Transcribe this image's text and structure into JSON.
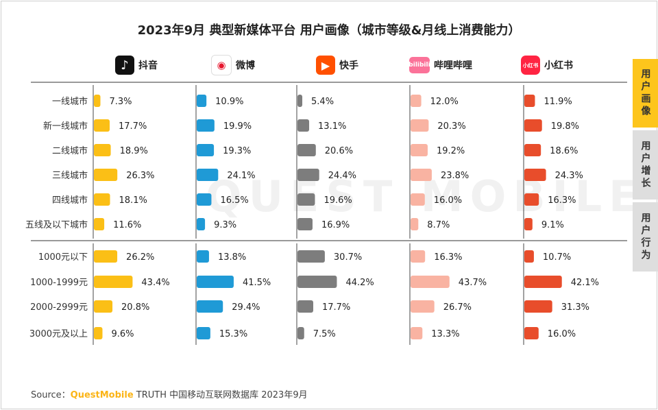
{
  "title": "2023年9月 典型新媒体平台 用户画像（城市等级&月线上消费能力）",
  "platforms": [
    {
      "name": "抖音",
      "logo_icon": "douyin-logo-icon",
      "logo_glyph": "♪"
    },
    {
      "name": "微博",
      "logo_icon": "weibo-logo-icon",
      "logo_glyph": "◉"
    },
    {
      "name": "快手",
      "logo_icon": "kuaishou-logo-icon",
      "logo_glyph": "▶"
    },
    {
      "name": "哔哩哔哩",
      "logo_icon": "bilibili-logo-icon",
      "logo_glyph": "bilibili"
    },
    {
      "name": "小红书",
      "logo_icon": "xiaohongshu-logo-icon",
      "logo_glyph": "小红书"
    }
  ],
  "side_tabs": [
    {
      "label": "用户画像",
      "active": true
    },
    {
      "label": "用户增长",
      "active": false
    },
    {
      "label": "用户行为",
      "active": false
    }
  ],
  "watermark": "QUEST MOBILE",
  "source": {
    "prefix": "Source：",
    "brand": "QuestMobile",
    "rest": " TRUTH 中国移动互联网数据库 2023年9月"
  },
  "colors": {
    "抖音": "#fbbf16",
    "微博": "#1f9ad6",
    "快手": "#7d7d7d",
    "哔哩哔哩": "#f9b3a2",
    "小红书": "#e84d2b"
  },
  "chart_data": [
    {
      "type": "bar",
      "group": "城市等级",
      "categories": [
        "一线城市",
        "新一线城市",
        "二线城市",
        "三线城市",
        "四线城市",
        "五线及以下城市"
      ],
      "unit": "%",
      "series": [
        {
          "name": "抖音",
          "values": [
            7.3,
            17.7,
            18.9,
            26.3,
            18.1,
            11.6
          ]
        },
        {
          "name": "微博",
          "values": [
            10.9,
            19.9,
            19.3,
            24.1,
            16.5,
            9.3
          ]
        },
        {
          "name": "快手",
          "values": [
            5.4,
            13.1,
            20.6,
            24.4,
            19.6,
            16.9
          ]
        },
        {
          "name": "哔哩哔哩",
          "values": [
            12.0,
            20.3,
            19.2,
            23.8,
            16.0,
            8.7
          ]
        },
        {
          "name": "小红书",
          "values": [
            11.9,
            19.8,
            18.6,
            24.3,
            16.3,
            9.1
          ]
        }
      ]
    },
    {
      "type": "bar",
      "group": "月线上消费能力",
      "categories": [
        "1000元以下",
        "1000-1999元",
        "2000-2999元",
        "3000元及以上"
      ],
      "unit": "%",
      "series": [
        {
          "name": "抖音",
          "values": [
            26.2,
            43.4,
            20.8,
            9.6
          ]
        },
        {
          "name": "微博",
          "values": [
            13.8,
            41.5,
            29.4,
            15.3
          ]
        },
        {
          "name": "快手",
          "values": [
            30.7,
            44.2,
            17.7,
            7.5
          ]
        },
        {
          "name": "哔哩哔哩",
          "values": [
            16.3,
            43.7,
            26.7,
            13.3
          ]
        },
        {
          "name": "小红书",
          "values": [
            10.7,
            42.1,
            31.3,
            16.0
          ]
        }
      ]
    }
  ]
}
